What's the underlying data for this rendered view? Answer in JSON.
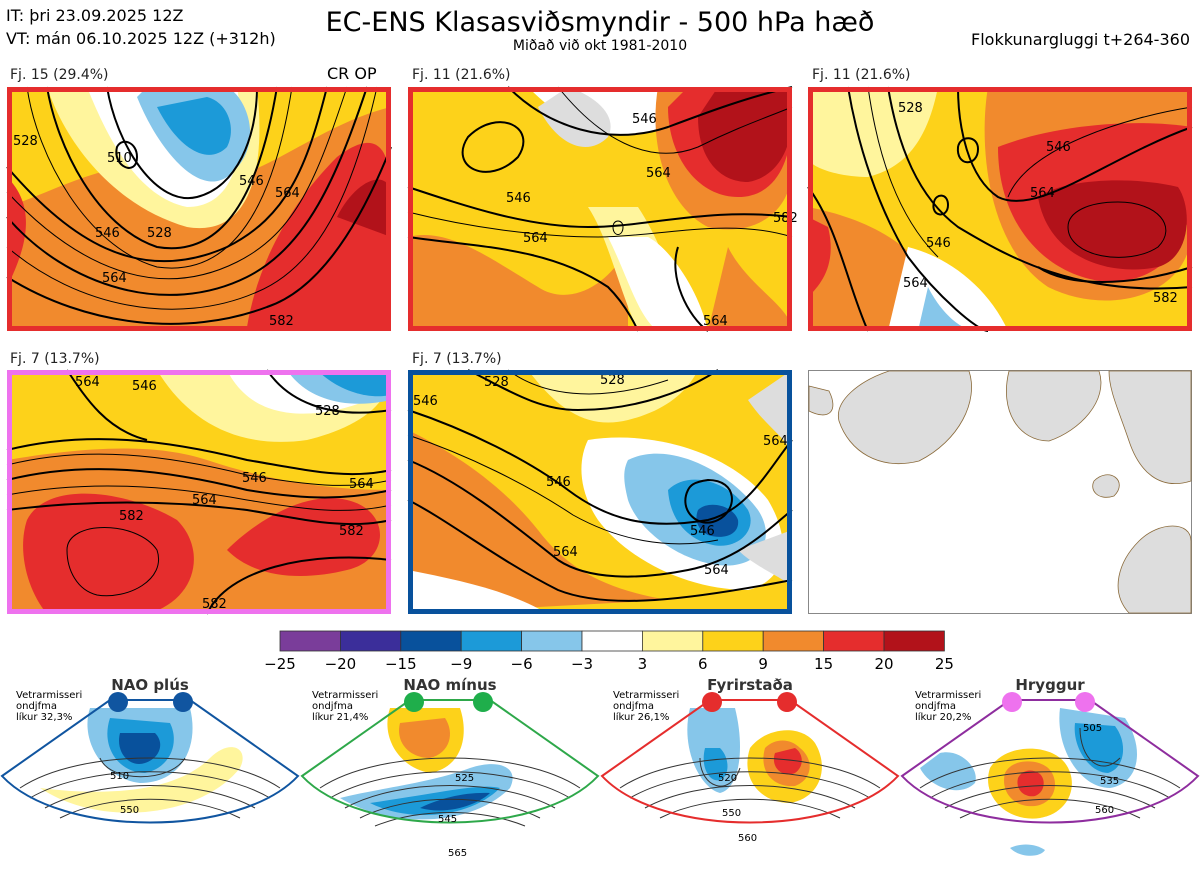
{
  "header": {
    "issue_time": "IT: þri 23.09.2025 12Z",
    "valid_time": "VT: mán 06.10.2025 12Z  (+312h)",
    "title": "EC-ENS Klasasviðsmyndir - 500 hPa hæð",
    "subtitle": "Miðað við okt 1981-2010",
    "window": "Flokkunargluggi t+264-360"
  },
  "clusters": [
    {
      "label": "Fj. 15 (29.4%)",
      "tag": "CR OP",
      "frame_color": "#e52d2d",
      "contours": [
        "546",
        "564",
        "528",
        "546",
        "564",
        "582",
        "528",
        "510"
      ]
    },
    {
      "label": "Fj. 11 (21.6%)",
      "tag": "",
      "frame_color": "#e52d2d",
      "contours": [
        "546",
        "546",
        "564",
        "564",
        "582",
        "564"
      ]
    },
    {
      "label": "Fj. 11 (21.6%)",
      "tag": "",
      "frame_color": "#e52d2d",
      "contours": [
        "546",
        "564",
        "546",
        "528",
        "582",
        "564"
      ]
    },
    {
      "label": "Fj. 7 (13.7%)",
      "tag": "",
      "frame_color": "#ee72ee",
      "contours": [
        "564",
        "546",
        "528",
        "564",
        "582",
        "582",
        "546",
        "564",
        "582"
      ]
    },
    {
      "label": "Fj. 7 (13.7%)",
      "tag": "",
      "frame_color": "#08519c",
      "contours": [
        "546",
        "528",
        "546",
        "564",
        "546",
        "564",
        "564",
        "528"
      ]
    }
  ],
  "colorbar": {
    "ticks": [
      "−25",
      "−20",
      "−15",
      "−9",
      "−6",
      "−3",
      "3",
      "6",
      "9",
      "15",
      "20",
      "25"
    ],
    "colors": [
      "#7a3d9a",
      "#3b2e9a",
      "#08519c",
      "#1c9ad8",
      "#86c6ea",
      "#ffffff",
      "#fff59d",
      "#fdd21a",
      "#f18a2d",
      "#e52d2d",
      "#b2121a"
    ]
  },
  "regimes": [
    {
      "name": "NAO plús",
      "note": [
        "Vetrarmisseri",
        "ondjfma",
        "líkur 32,3%"
      ],
      "dot_color": "#1055a0",
      "edge_color": "#1055a0",
      "contours": [
        "510",
        "550"
      ]
    },
    {
      "name": "NAO mínus",
      "note": [
        "Vetrarmisseri",
        "ondjfma",
        "líkur 21,4%"
      ],
      "dot_color": "#1fae4b",
      "edge_color": "#2ea84a",
      "contours": [
        "525",
        "545",
        "565"
      ]
    },
    {
      "name": "Fyrirstaða",
      "note": [
        "Vetrarmisseri",
        "ondjfma",
        "líkur 26,1%"
      ],
      "dot_color": "#e52d2d",
      "edge_color": "#e52d2d",
      "contours": [
        "520",
        "550",
        "560"
      ]
    },
    {
      "name": "Hryggur",
      "note": [
        "Vetrarmisseri",
        "ondjfma",
        "líkur 20,2%"
      ],
      "dot_color": "#ee72ee",
      "edge_color": "#8e2d9e",
      "contours": [
        "505",
        "535",
        "560"
      ]
    }
  ]
}
